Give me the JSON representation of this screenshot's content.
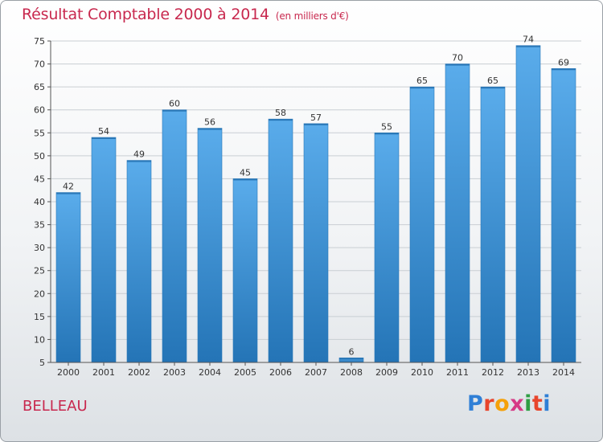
{
  "header": {
    "title": "Résultat Comptable 2000 à 2014",
    "subtitle": "(en milliers d'€)"
  },
  "footer": {
    "place": "BELLEAU",
    "logo_text": "Proxiti",
    "logo_colors": [
      "#2f7fd6",
      "#e8452c",
      "#f5a10a",
      "#d63a86",
      "#2f9e44",
      "#e8452c",
      "#2f7fd6"
    ]
  },
  "chart_data": {
    "type": "bar",
    "title": "Résultat Comptable 2000 à 2014",
    "subtitle": "(en milliers d'€)",
    "categories": [
      "2000",
      "2001",
      "2002",
      "2003",
      "2004",
      "2005",
      "2006",
      "2007",
      "2008",
      "2009",
      "2010",
      "2011",
      "2012",
      "2013",
      "2014"
    ],
    "values": [
      42,
      54,
      49,
      60,
      56,
      45,
      58,
      57,
      6,
      55,
      65,
      70,
      65,
      74,
      69
    ],
    "ylim": [
      5,
      75
    ],
    "yticks": [
      5,
      10,
      15,
      20,
      25,
      30,
      35,
      40,
      45,
      50,
      55,
      60,
      65,
      70,
      75
    ],
    "grid": true,
    "colors": {
      "bar_top": "#5aaceb",
      "bar_bottom": "#2474b6",
      "grid": "#c9ced3",
      "text": "#333333"
    }
  }
}
